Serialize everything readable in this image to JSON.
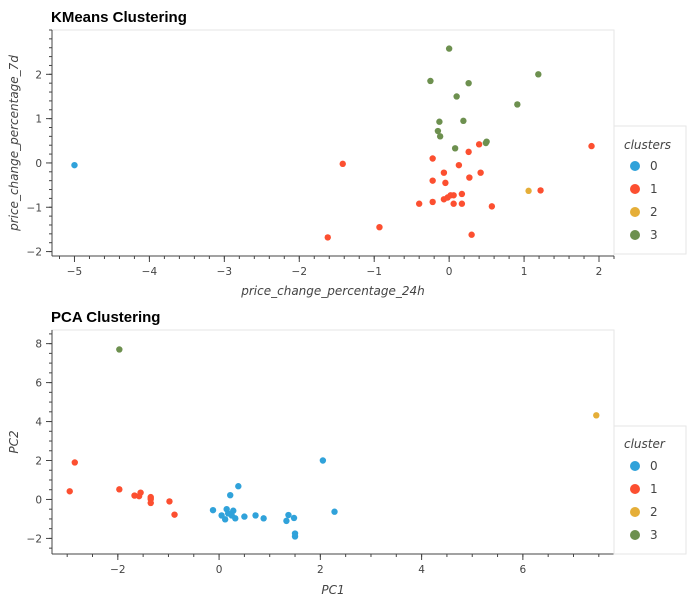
{
  "colors": {
    "0": "#30a2da",
    "1": "#fc4f30",
    "2": "#e5ae38",
    "3": "#6d904f"
  },
  "chart_data": [
    {
      "type": "scatter",
      "title": "KMeans Clustering",
      "xlabel": "price_change_percentage_24h",
      "ylabel": "price_change_percentage_7d",
      "xlim": [
        -5.3,
        2.2
      ],
      "ylim": [
        -2.1,
        3.0
      ],
      "xticks": [
        -5,
        -4,
        -3,
        -2,
        -1,
        0,
        1,
        2
      ],
      "yticks": [
        -2,
        -1,
        0,
        1,
        2
      ],
      "legend_title": "clusters",
      "legend_placement": "right",
      "grid": false,
      "series": [
        {
          "name": "0",
          "points": [
            [
              -5.0,
              -0.05
            ]
          ]
        },
        {
          "name": "1",
          "points": [
            [
              1.9,
              0.38
            ],
            [
              1.22,
              -0.62
            ],
            [
              0.57,
              -0.98
            ],
            [
              0.42,
              -0.22
            ],
            [
              0.4,
              0.42
            ],
            [
              0.3,
              -1.62
            ],
            [
              0.27,
              -0.33
            ],
            [
              0.26,
              0.25
            ],
            [
              0.17,
              -0.92
            ],
            [
              0.17,
              -0.7
            ],
            [
              0.13,
              -0.05
            ],
            [
              0.06,
              -0.92
            ],
            [
              0.06,
              -0.73
            ],
            [
              0.02,
              -0.73
            ],
            [
              -0.02,
              -0.78
            ],
            [
              -0.05,
              -0.45
            ],
            [
              -0.07,
              -0.82
            ],
            [
              -0.07,
              -0.22
            ],
            [
              -0.22,
              0.1
            ],
            [
              -0.22,
              -0.4
            ],
            [
              -0.22,
              -0.88
            ],
            [
              -0.4,
              -0.92
            ],
            [
              -0.93,
              -1.45
            ],
            [
              -1.42,
              -0.02
            ],
            [
              -1.62,
              -1.68
            ]
          ]
        },
        {
          "name": "2",
          "points": [
            [
              1.06,
              -0.63
            ]
          ]
        },
        {
          "name": "3",
          "points": [
            [
              1.19,
              2.0
            ],
            [
              0.91,
              1.32
            ],
            [
              0.5,
              0.48
            ],
            [
              0.49,
              0.45
            ],
            [
              0.26,
              1.8
            ],
            [
              0.19,
              0.95
            ],
            [
              0.1,
              1.5
            ],
            [
              0.08,
              0.33
            ],
            [
              0.0,
              2.58
            ],
            [
              -0.12,
              0.6
            ],
            [
              -0.13,
              0.93
            ],
            [
              -0.15,
              0.72
            ],
            [
              -0.25,
              1.85
            ]
          ]
        }
      ]
    },
    {
      "type": "scatter",
      "title": "PCA Clustering",
      "xlabel": "PC1",
      "ylabel": "PC2",
      "xlim": [
        -3.3,
        7.8
      ],
      "ylim": [
        -2.8,
        8.7
      ],
      "xticks": [
        -2,
        0,
        2,
        4,
        6
      ],
      "yticks": [
        -2,
        0,
        2,
        4,
        6,
        8
      ],
      "legend_title": "cluster",
      "legend_placement": "right",
      "grid": false,
      "series": [
        {
          "name": "0",
          "points": [
            [
              2.05,
              2.0
            ],
            [
              2.28,
              -0.63
            ],
            [
              1.5,
              -1.75
            ],
            [
              1.5,
              -1.9
            ],
            [
              1.48,
              -0.95
            ],
            [
              1.37,
              -0.8
            ],
            [
              1.33,
              -1.1
            ],
            [
              0.88,
              -0.97
            ],
            [
              0.72,
              -0.82
            ],
            [
              0.5,
              -0.88
            ],
            [
              0.38,
              0.68
            ],
            [
              0.32,
              -0.97
            ],
            [
              0.28,
              -0.58
            ],
            [
              0.25,
              -0.82
            ],
            [
              0.22,
              0.22
            ],
            [
              0.18,
              -0.72
            ],
            [
              0.15,
              -0.5
            ],
            [
              0.12,
              -1.02
            ],
            [
              0.05,
              -0.82
            ],
            [
              -0.12,
              -0.55
            ]
          ]
        },
        {
          "name": "1",
          "points": [
            [
              -2.95,
              0.42
            ],
            [
              -2.85,
              1.9
            ],
            [
              -1.97,
              0.52
            ],
            [
              -1.67,
              0.2
            ],
            [
              -1.58,
              0.17
            ],
            [
              -1.55,
              0.35
            ],
            [
              -1.35,
              0.12
            ],
            [
              -1.35,
              0.02
            ],
            [
              -1.35,
              -0.18
            ],
            [
              -0.98,
              -0.1
            ],
            [
              -0.88,
              -0.78
            ]
          ]
        },
        {
          "name": "2",
          "points": [
            [
              7.45,
              4.32
            ]
          ]
        },
        {
          "name": "3",
          "points": [
            [
              -1.97,
              7.7
            ]
          ]
        }
      ]
    }
  ]
}
